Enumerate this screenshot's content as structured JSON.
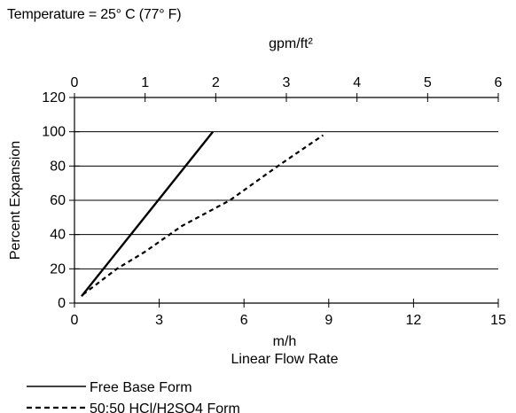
{
  "header": {
    "temperature_note": "Temperature = 25° C (77° F)"
  },
  "chart_data": {
    "type": "line",
    "title": "",
    "subtitle": "",
    "xlabel": "m/h",
    "xlabel_secondary": "Linear Flow Rate",
    "ylabel": "Percent Expansion",
    "top_axis_label": "gpm/ft²",
    "xlim": [
      0,
      15
    ],
    "ylim": [
      0,
      120
    ],
    "x_ticks": [
      "0",
      "3",
      "6",
      "9",
      "12",
      "15"
    ],
    "y_ticks": [
      "0",
      "20",
      "40",
      "60",
      "80",
      "100",
      "120"
    ],
    "top_axis_lim": [
      0,
      6
    ],
    "top_axis_ticks": [
      "0",
      "1",
      "2",
      "3",
      "4",
      "5",
      "6"
    ],
    "grid": "horizontal",
    "legend_position": "bottom-left",
    "series": [
      {
        "name": "Free Base Form",
        "style": "solid",
        "color": "#000000",
        "x": [
          0.25,
          4.9
        ],
        "y": [
          4,
          100
        ]
      },
      {
        "name": "50:50 HCl/H2SO4 Form",
        "style": "dashed",
        "color": "#000000",
        "x": [
          0.3,
          1.5,
          2.5,
          3.8,
          5.5,
          7.2,
          8.8
        ],
        "y": [
          5,
          20,
          30,
          45,
          60,
          80,
          98
        ]
      }
    ]
  }
}
